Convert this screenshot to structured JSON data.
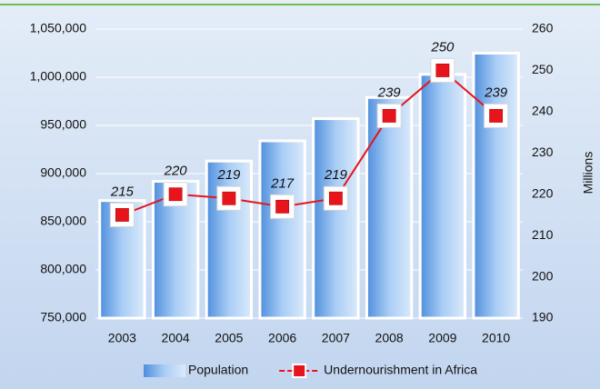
{
  "chart_data": {
    "type": "bar",
    "categories": [
      "2003",
      "2004",
      "2005",
      "2006",
      "2007",
      "2008",
      "2009",
      "2010"
    ],
    "series": [
      {
        "name": "Population",
        "type": "bar",
        "color": "#6fa8e8",
        "values": [
          872000,
          892000,
          913000,
          934000,
          957000,
          979000,
          1003000,
          1025000
        ]
      },
      {
        "name": "Undernourishment in Africa",
        "type": "line",
        "axis": "y2",
        "color": "#e8141c",
        "values": [
          215,
          220,
          219,
          217,
          219,
          239,
          250,
          239
        ]
      }
    ],
    "ylim": [
      750000,
      1050000
    ],
    "yticks": [
      {
        "value": 750000,
        "label": "750,000"
      },
      {
        "value": 800000,
        "label": "800,000"
      },
      {
        "value": 850000,
        "label": "850,000"
      },
      {
        "value": 900000,
        "label": "900,000"
      },
      {
        "value": 950000,
        "label": "950,000"
      },
      {
        "value": 1000000,
        "label": "1,000,000"
      },
      {
        "value": 1050000,
        "label": "1,050,000"
      }
    ],
    "y2lim": [
      190,
      260
    ],
    "y2ticks": [
      190,
      200,
      210,
      220,
      230,
      240,
      250,
      260
    ],
    "y2label": "Millions",
    "grid": true,
    "legend": "bottom"
  }
}
